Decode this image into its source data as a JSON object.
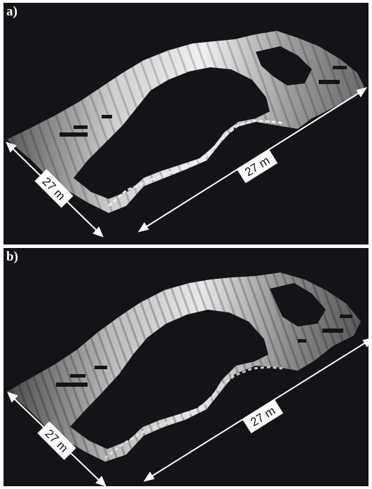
{
  "panels": [
    {
      "label": "a)",
      "scale_left": "27 m",
      "scale_right": "27 m"
    },
    {
      "label": "b)",
      "scale_left": "27 m",
      "scale_right": "27 m"
    }
  ],
  "colors": {
    "background": "#141418",
    "surface_light": "#e6e6e6",
    "surface_mid": "#8c8c8c",
    "surface_dark": "#3a3a3a",
    "annotation": "#ffffff"
  }
}
